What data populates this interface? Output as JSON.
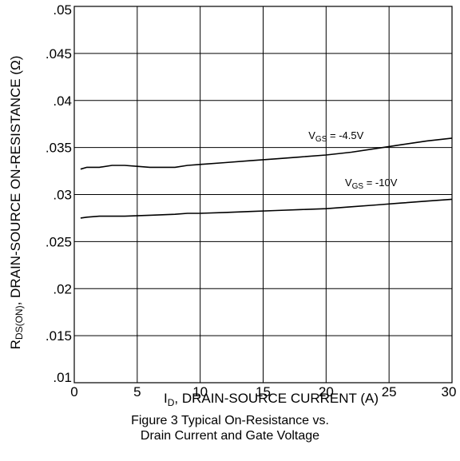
{
  "chart_data": {
    "type": "line",
    "x_label": "I",
    "x_label_sub": "D",
    "x_label_rest": ", DRAIN-SOURCE CURRENT (A)",
    "y_label_main": "R",
    "y_label_sub": "DS(ON)",
    "y_label_rest": ", DRAIN-SOURCE ON-RESISTANCE (Ω)",
    "xlim": [
      0,
      30
    ],
    "ylim": [
      0.01,
      0.05
    ],
    "x_ticks": [
      0,
      5,
      10,
      15,
      20,
      25,
      30
    ],
    "x_tick_labels": [
      "0",
      "5",
      "10",
      "15",
      "20",
      "25",
      "30"
    ],
    "y_ticks": [
      0.01,
      0.015,
      0.02,
      0.025,
      0.03,
      0.035,
      0.04,
      0.045,
      0.05
    ],
    "y_tick_labels": [
      ".01",
      ".015",
      ".02",
      ".025",
      ".03",
      ".035",
      ".04",
      ".045",
      ".05"
    ],
    "grid": true,
    "series": [
      {
        "label_main": "V",
        "label_sub": "GS",
        "label_rest": " = -4.5V",
        "label_at": [
          18.6,
          0.0359
        ],
        "color": "#000000",
        "x": [
          0.5,
          1,
          2,
          3,
          4,
          5,
          6,
          7,
          8,
          9,
          10,
          12,
          14,
          16,
          18,
          20,
          22,
          24,
          26,
          28,
          30
        ],
        "y": [
          0.0327,
          0.0329,
          0.0329,
          0.0331,
          0.0331,
          0.033,
          0.0329,
          0.0329,
          0.0329,
          0.0331,
          0.0332,
          0.0334,
          0.0336,
          0.0338,
          0.034,
          0.0342,
          0.0345,
          0.0349,
          0.0353,
          0.0357,
          0.036
        ]
      },
      {
        "label_main": "V",
        "label_sub": "GS",
        "label_rest": " = -10V",
        "label_at": [
          21.5,
          0.0309
        ],
        "color": "#000000",
        "x": [
          0.5,
          1,
          2,
          4,
          6,
          8,
          9,
          10,
          12,
          14,
          16,
          18,
          20,
          22,
          24,
          26,
          28,
          30
        ],
        "y": [
          0.0275,
          0.0276,
          0.0277,
          0.0277,
          0.0278,
          0.0279,
          0.028,
          0.028,
          0.0281,
          0.0282,
          0.0283,
          0.0284,
          0.0285,
          0.0287,
          0.0289,
          0.0291,
          0.0293,
          0.0295
        ]
      }
    ]
  },
  "caption": {
    "line1": "Figure 3 Typical On-Resistance vs.",
    "line2": "Drain Current and Gate Voltage"
  }
}
